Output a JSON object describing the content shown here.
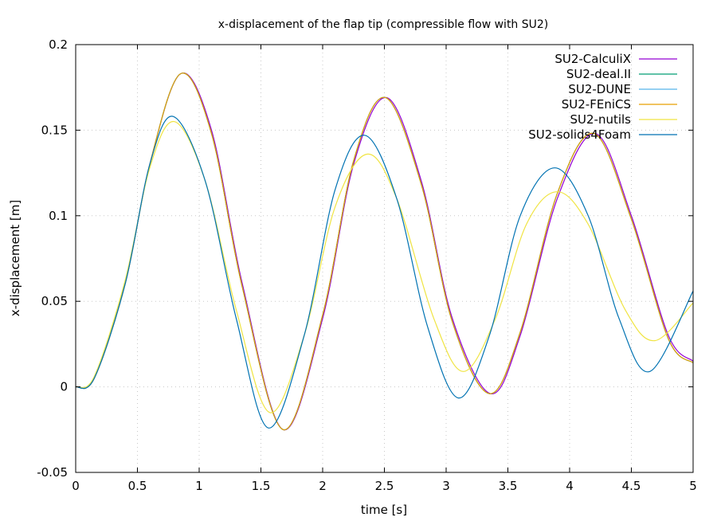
{
  "chart_data": {
    "type": "line",
    "title": "x-displacement of the flap tip (compressible flow with SU2)",
    "xlabel": "time [s]",
    "ylabel": "x-displacement [m]",
    "xlim": [
      0,
      5
    ],
    "ylim": [
      -0.05,
      0.2
    ],
    "xticks": [
      "0",
      "0.5",
      "1",
      "1.5",
      "2",
      "2.5",
      "3",
      "3.5",
      "4",
      "4.5",
      "5"
    ],
    "yticks": [
      "-0.05",
      "0",
      "0.05",
      "0.1",
      "0.15",
      "0.2"
    ],
    "grid": true,
    "legend_position": "top-right",
    "series": [
      {
        "name": "SU2-CalculiX",
        "color": "#9400d3",
        "t": [
          0,
          0.15,
          0.4,
          0.6,
          0.85,
          1.1,
          1.35,
          1.68,
          2.0,
          2.25,
          2.52,
          2.8,
          3.05,
          3.36,
          3.6,
          3.9,
          4.21,
          4.5,
          4.8,
          5.0
        ],
        "x": [
          0,
          0.005,
          0.06,
          0.13,
          0.183,
          0.15,
          0.06,
          -0.025,
          0.04,
          0.13,
          0.169,
          0.12,
          0.04,
          -0.004,
          0.03,
          0.11,
          0.148,
          0.1,
          0.03,
          0.015
        ]
      },
      {
        "name": "SU2-deal.II",
        "color": "#009e73",
        "t": [
          0,
          0.15,
          0.4,
          0.6,
          0.85,
          1.1,
          1.35,
          1.68,
          2.0,
          2.25,
          2.51,
          2.8,
          3.05,
          3.35,
          3.6,
          3.9,
          4.2,
          4.5,
          4.8,
          5.0
        ],
        "x": [
          0,
          0.005,
          0.06,
          0.13,
          0.183,
          0.148,
          0.058,
          -0.025,
          0.042,
          0.132,
          0.169,
          0.118,
          0.038,
          -0.004,
          0.032,
          0.113,
          0.148,
          0.098,
          0.028,
          0.014
        ]
      },
      {
        "name": "SU2-DUNE",
        "color": "#56b4e9",
        "t": [
          0,
          0.15,
          0.4,
          0.6,
          0.85,
          1.1,
          1.35,
          1.68,
          2.0,
          2.25,
          2.51,
          2.8,
          3.05,
          3.35,
          3.6,
          3.9,
          4.2,
          4.5,
          4.8,
          5.0
        ],
        "x": [
          0,
          0.005,
          0.06,
          0.13,
          0.183,
          0.148,
          0.058,
          -0.025,
          0.042,
          0.132,
          0.169,
          0.118,
          0.038,
          -0.004,
          0.032,
          0.113,
          0.148,
          0.098,
          0.028,
          0.014
        ]
      },
      {
        "name": "SU2-FEniCS",
        "color": "#e69f00",
        "t": [
          0,
          0.15,
          0.4,
          0.6,
          0.85,
          1.1,
          1.35,
          1.68,
          2.0,
          2.25,
          2.51,
          2.8,
          3.05,
          3.35,
          3.6,
          3.9,
          4.2,
          4.5,
          4.8,
          5.0
        ],
        "x": [
          0,
          0.005,
          0.06,
          0.13,
          0.183,
          0.148,
          0.058,
          -0.025,
          0.042,
          0.132,
          0.169,
          0.118,
          0.038,
          -0.004,
          0.032,
          0.113,
          0.148,
          0.098,
          0.028,
          0.014
        ]
      },
      {
        "name": "SU2-nutils",
        "color": "#f0e442",
        "t": [
          0,
          0.15,
          0.4,
          0.6,
          0.8,
          1.05,
          1.3,
          1.57,
          1.85,
          2.1,
          2.36,
          2.6,
          2.9,
          3.14,
          3.4,
          3.65,
          3.9,
          4.15,
          4.45,
          4.69,
          5.0
        ],
        "x": [
          0,
          0.006,
          0.062,
          0.128,
          0.155,
          0.12,
          0.045,
          -0.015,
          0.03,
          0.105,
          0.136,
          0.11,
          0.04,
          0.009,
          0.04,
          0.095,
          0.114,
          0.095,
          0.045,
          0.027,
          0.049
        ]
      },
      {
        "name": "SU2-solids4Foam",
        "color": "#0072b2",
        "t": [
          0,
          0.15,
          0.4,
          0.6,
          0.79,
          1.05,
          1.3,
          1.56,
          1.85,
          2.1,
          2.34,
          2.6,
          2.85,
          3.1,
          3.35,
          3.6,
          3.88,
          4.15,
          4.4,
          4.65,
          5.0
        ],
        "x": [
          0,
          0.005,
          0.06,
          0.13,
          0.158,
          0.12,
          0.04,
          -0.024,
          0.03,
          0.115,
          0.147,
          0.11,
          0.035,
          -0.0065,
          0.03,
          0.1,
          0.128,
          0.1,
          0.04,
          0.009,
          0.056
        ]
      }
    ]
  }
}
